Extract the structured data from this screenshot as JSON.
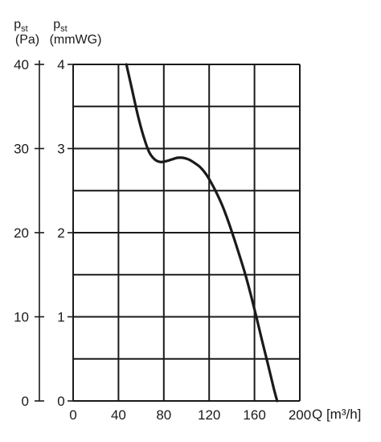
{
  "chart_data": {
    "type": "line",
    "title": "",
    "xlabel": "Q [m³/h]",
    "xlim": [
      0,
      200
    ],
    "x_ticks": [
      "0",
      "40",
      "80",
      "120",
      "160",
      "200"
    ],
    "y_axes": [
      {
        "label_main": "p",
        "label_sub": "st",
        "unit": "(Pa)",
        "ylim": [
          0,
          40
        ],
        "ticks": [
          "0",
          "10",
          "20",
          "30",
          "40"
        ]
      },
      {
        "label_main": "p",
        "label_sub": "st",
        "unit": "(mmWG)",
        "ylim": [
          0,
          4
        ],
        "ticks": [
          "0",
          "1",
          "2",
          "3",
          "4"
        ]
      }
    ],
    "grid": true,
    "series": [
      {
        "name": "",
        "x": [
          47,
          52,
          57,
          62,
          67,
          72,
          77,
          82,
          87,
          92,
          97,
          102,
          107,
          112,
          117,
          122,
          127,
          132,
          137,
          142,
          147,
          152,
          157,
          162,
          167,
          172,
          177,
          180
        ],
        "y": [
          40.0,
          37.0,
          34.0,
          31.5,
          29.6,
          28.7,
          28.4,
          28.5,
          28.7,
          28.9,
          28.9,
          28.7,
          28.3,
          27.8,
          27.0,
          25.9,
          24.6,
          23.1,
          21.3,
          19.3,
          17.2,
          15.0,
          12.5,
          9.8,
          7.0,
          4.3,
          1.5,
          0.0
        ]
      }
    ]
  }
}
